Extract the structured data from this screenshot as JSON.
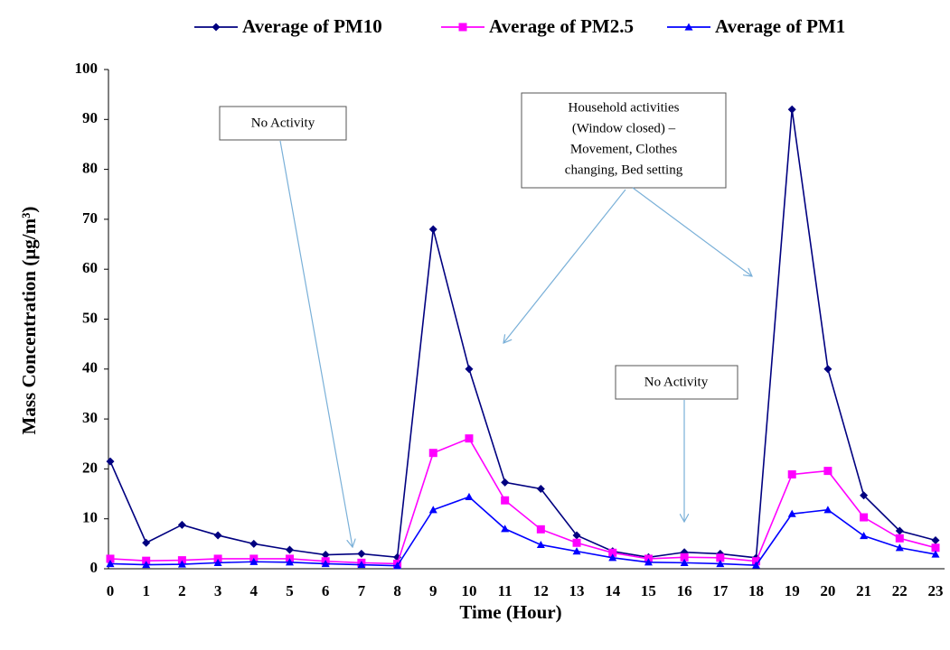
{
  "chart_data": {
    "type": "line",
    "xlabel": "Time (Hour)",
    "ylabel": "Mass Concentration (µg/m³)",
    "categories": [
      "0",
      "1",
      "2",
      "3",
      "4",
      "5",
      "6",
      "7",
      "8",
      "9",
      "10",
      "11",
      "12",
      "13",
      "14",
      "15",
      "16",
      "17",
      "18",
      "19",
      "20",
      "21",
      "22",
      "23"
    ],
    "series": [
      {
        "name": "Average of PM10",
        "color": "#000080",
        "marker": "diamond",
        "values": [
          21.5,
          5.2,
          8.8,
          6.7,
          5.0,
          3.8,
          2.8,
          3.0,
          2.3,
          68,
          40,
          17.3,
          16,
          6.7,
          3.5,
          2.3,
          3.3,
          3.0,
          2.2,
          92,
          40,
          14.7,
          7.6,
          5.7
        ]
      },
      {
        "name": "Average of PM2.5",
        "color": "#ff00ff",
        "marker": "square",
        "values": [
          2.0,
          1.6,
          1.7,
          2.0,
          2.0,
          2.0,
          1.5,
          1.2,
          1.0,
          23.2,
          26.1,
          13.7,
          7.9,
          5.2,
          3.2,
          2.0,
          2.3,
          2.2,
          1.5,
          18.9,
          19.6,
          10.3,
          6.1,
          4.2
        ]
      },
      {
        "name": "Average of PM1",
        "color": "#0000ff",
        "marker": "triangle",
        "values": [
          1.0,
          0.8,
          0.9,
          1.2,
          1.4,
          1.3,
          1.0,
          0.8,
          0.6,
          11.8,
          14.4,
          8.0,
          4.8,
          3.5,
          2.2,
          1.3,
          1.2,
          1.0,
          0.7,
          11.0,
          11.8,
          6.6,
          4.2,
          2.9
        ]
      }
    ],
    "ylim": [
      0,
      100
    ],
    "yticks": [
      0,
      10,
      20,
      30,
      40,
      50,
      60,
      70,
      80,
      90,
      100
    ],
    "grid": false,
    "legend": "top",
    "annotations": [
      {
        "lines": [
          "No Activity"
        ]
      },
      {
        "lines": [
          "Household activities",
          "(Window closed) –",
          "Movement,  Clothes",
          "changing,  Bed setting"
        ]
      },
      {
        "lines": [
          "No Activity"
        ]
      }
    ]
  }
}
